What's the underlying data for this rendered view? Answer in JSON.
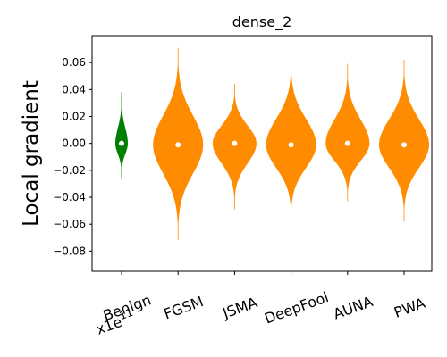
{
  "chart_data": {
    "type": "violin",
    "title": "dense_2",
    "ylabel": "Local gradient",
    "xlabel": "",
    "ylim": [
      -0.095,
      0.08
    ],
    "yticks": [
      -0.08,
      -0.06,
      -0.04,
      -0.02,
      0.0,
      0.02,
      0.04,
      0.06
    ],
    "ytick_labels": [
      "−0.08",
      "−0.06",
      "−0.04",
      "−0.02",
      "0.00",
      "0.02",
      "0.04",
      "0.06"
    ],
    "scale_note": {
      "base": "x1e",
      "exponent": "11"
    },
    "categories": [
      "Benign",
      "FGSM",
      "JSMA",
      "DeepFool",
      "AUNA",
      "PWA"
    ],
    "grid": false,
    "series": [
      {
        "category": "Benign",
        "color": "#008000",
        "median": 0.0,
        "min": -0.026,
        "max": 0.038,
        "body_halfwidth": 0.01
      },
      {
        "category": "FGSM",
        "color": "#ff8c00",
        "median": -0.001,
        "min": -0.072,
        "max": 0.071,
        "body_halfwidth": 0.04
      },
      {
        "category": "JSMA",
        "color": "#ff8c00",
        "median": 0.0,
        "min": -0.049,
        "max": 0.044,
        "body_halfwidth": 0.035
      },
      {
        "category": "DeepFool",
        "color": "#ff8c00",
        "median": -0.001,
        "min": -0.058,
        "max": 0.063,
        "body_halfwidth": 0.04
      },
      {
        "category": "AUNA",
        "color": "#ff8c00",
        "median": 0.0,
        "min": -0.043,
        "max": 0.059,
        "body_halfwidth": 0.035
      },
      {
        "category": "PWA",
        "color": "#ff8c00",
        "median": -0.001,
        "min": -0.058,
        "max": 0.062,
        "body_halfwidth": 0.04
      }
    ],
    "median_marker_color": "#ffffff"
  }
}
